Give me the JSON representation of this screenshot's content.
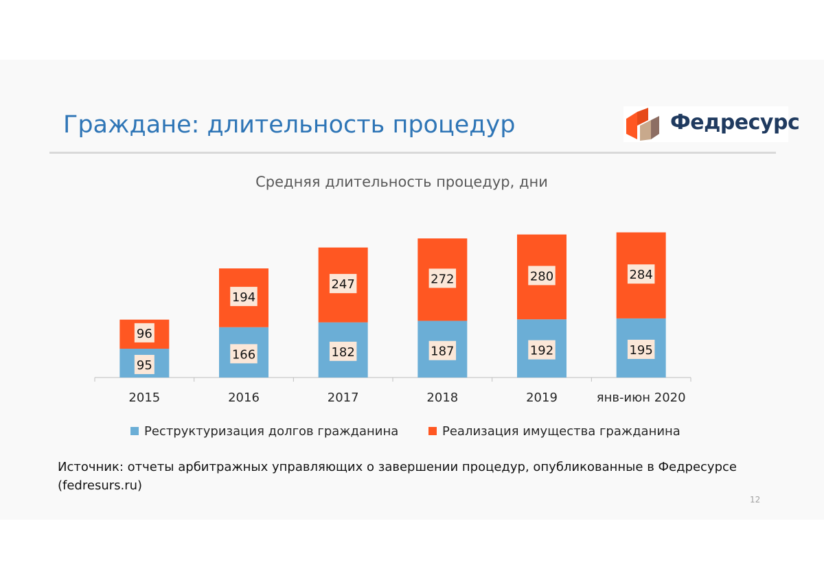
{
  "slide": {
    "title": "Граждане: длительность процедур",
    "logo_text": "Федресурс",
    "source_note": "Источник: отчеты арбитражных управляющих о завершении процедур, опубликованные в Федресурсе (fedresurs.ru)",
    "page_number": "12"
  },
  "colors": {
    "series_1": "#6baed6",
    "series_2": "#ff5722",
    "title": "#2e75b6",
    "logo_dark": "#1f3a5f"
  },
  "chart_data": {
    "type": "bar",
    "stacked": true,
    "title": "Средняя длительность процедур, дни",
    "xlabel": "",
    "ylabel": "",
    "ylim": [
      0,
      500
    ],
    "grid": false,
    "legend_position": "bottom",
    "categories": [
      "2015",
      "2016",
      "2017",
      "2018",
      "2019",
      "янв-июн 2020"
    ],
    "series": [
      {
        "name": "Реструктуризация долгов гражданина",
        "values": [
          95,
          166,
          182,
          187,
          192,
          195
        ]
      },
      {
        "name": "Реализация имущества гражданина",
        "values": [
          96,
          194,
          247,
          272,
          280,
          284
        ]
      }
    ]
  }
}
